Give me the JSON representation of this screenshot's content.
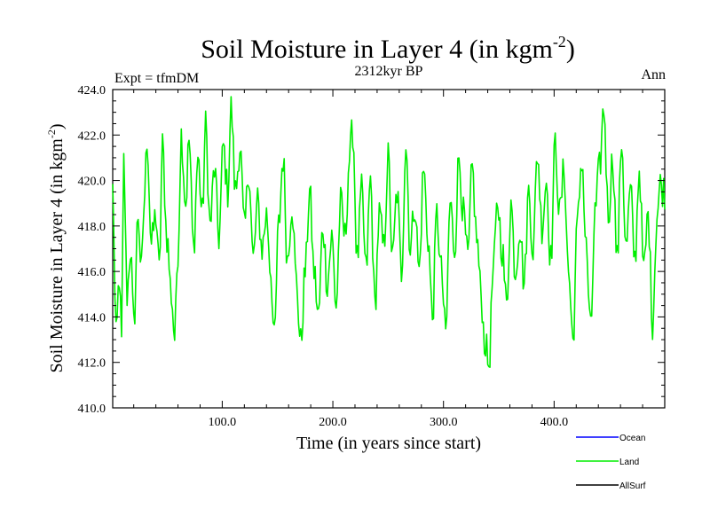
{
  "chart_data": {
    "type": "line",
    "title_main": "Soil Moisture in Layer 4 (in kgm",
    "title_sup": "-2",
    "title_close": ")",
    "subtitle": "2312kyr BP",
    "left_label": "Expt = tfmDM",
    "right_label": "Ann",
    "xlabel": "Time (in years since start)",
    "ylabel_main": "Soil Moisture in Layer 4 (in kgm",
    "ylabel_sup": "-2",
    "ylabel_close": ")",
    "xlim": [
      1,
      500
    ],
    "ylim": [
      410,
      424
    ],
    "x_ticks": [
      100,
      200,
      300,
      400
    ],
    "x_tick_labels": [
      "100.0",
      "200.0",
      "300.0",
      "400.0"
    ],
    "y_ticks": [
      410,
      412,
      414,
      416,
      418,
      420,
      422,
      424
    ],
    "y_tick_labels": [
      "410.0",
      "412.0",
      "414.0",
      "416.0",
      "418.0",
      "420.0",
      "422.0",
      "424.0"
    ],
    "legend": [
      {
        "name": "Ocean",
        "color": "#0000ff"
      },
      {
        "name": "Land",
        "color": "#00ee00"
      },
      {
        "name": "AllSurf",
        "color": "#000000"
      }
    ],
    "series": [
      {
        "name": "Land",
        "color": "#00ee00",
        "x_start": 1,
        "x_step": 1,
        "anchors": [
          [
            1,
            419.6
          ],
          [
            4,
            413.0
          ],
          [
            7,
            415.8
          ],
          [
            9,
            412.8
          ],
          [
            11,
            420.8
          ],
          [
            14,
            415.0
          ],
          [
            17,
            417.0
          ],
          [
            20,
            413.6
          ],
          [
            24,
            418.5
          ],
          [
            27,
            416.0
          ],
          [
            30,
            419.5
          ],
          [
            32,
            421.9
          ],
          [
            36,
            417.2
          ],
          [
            40,
            418.5
          ],
          [
            43,
            416.0
          ],
          [
            46,
            421.5
          ],
          [
            50,
            417.5
          ],
          [
            54,
            415.0
          ],
          [
            57,
            413.1
          ],
          [
            60,
            417.0
          ],
          [
            63,
            422.0
          ],
          [
            67,
            419.0
          ],
          [
            70,
            421.8
          ],
          [
            74,
            417.0
          ],
          [
            78,
            421.0
          ],
          [
            82,
            418.5
          ],
          [
            85,
            422.4
          ],
          [
            89,
            418.0
          ],
          [
            93,
            420.5
          ],
          [
            97,
            417.5
          ],
          [
            101,
            421.5
          ],
          [
            105,
            419.5
          ],
          [
            108,
            423.2
          ],
          [
            112,
            419.5
          ],
          [
            116,
            421.5
          ],
          [
            120,
            417.8
          ],
          [
            124,
            420.5
          ],
          [
            128,
            416.5
          ],
          [
            132,
            419.0
          ],
          [
            136,
            417.0
          ],
          [
            140,
            418.5
          ],
          [
            144,
            416.0
          ],
          [
            147,
            412.9
          ],
          [
            151,
            418.0
          ],
          [
            155,
            421.0
          ],
          [
            159,
            416.5
          ],
          [
            163,
            419.0
          ],
          [
            167,
            415.5
          ],
          [
            171,
            412.8
          ],
          [
            175,
            416.0
          ],
          [
            179,
            419.5
          ],
          [
            183,
            416.0
          ],
          [
            187,
            414.0
          ],
          [
            191,
            418.0
          ],
          [
            195,
            415.5
          ],
          [
            199,
            417.5
          ],
          [
            203,
            414.5
          ],
          [
            207,
            419.0
          ],
          [
            211,
            417.5
          ],
          [
            215,
            421.0
          ],
          [
            218,
            422.2
          ],
          [
            222,
            416.5
          ],
          [
            226,
            419.5
          ],
          [
            230,
            416.0
          ],
          [
            234,
            420.0
          ],
          [
            238,
            414.5
          ],
          [
            242,
            418.5
          ],
          [
            246,
            417.0
          ],
          [
            250,
            421.0
          ],
          [
            254,
            416.5
          ],
          [
            258,
            419.5
          ],
          [
            262,
            416.0
          ],
          [
            266,
            421.6
          ],
          [
            270,
            417.0
          ],
          [
            274,
            419.0
          ],
          [
            278,
            416.0
          ],
          [
            282,
            420.5
          ],
          [
            286,
            417.5
          ],
          [
            290,
            414.0
          ],
          [
            294,
            418.5
          ],
          [
            298,
            416.0
          ],
          [
            302,
            413.2
          ],
          [
            306,
            419.0
          ],
          [
            310,
            417.0
          ],
          [
            314,
            421.0
          ],
          [
            318,
            418.5
          ],
          [
            322,
            416.5
          ],
          [
            326,
            420.5
          ],
          [
            330,
            417.5
          ],
          [
            334,
            415.0
          ],
          [
            337,
            413.0
          ],
          [
            341,
            411.9
          ],
          [
            345,
            416.0
          ],
          [
            349,
            419.0
          ],
          [
            353,
            417.0
          ],
          [
            357,
            414.5
          ],
          [
            361,
            419.0
          ],
          [
            365,
            416.0
          ],
          [
            369,
            418.0
          ],
          [
            373,
            415.5
          ],
          [
            377,
            419.5
          ],
          [
            381,
            417.0
          ],
          [
            385,
            421.2
          ],
          [
            389,
            418.0
          ],
          [
            393,
            420.0
          ],
          [
            397,
            416.5
          ],
          [
            401,
            421.6
          ],
          [
            405,
            418.5
          ],
          [
            409,
            420.5
          ],
          [
            413,
            416.0
          ],
          [
            417,
            413.0
          ],
          [
            421,
            418.0
          ],
          [
            425,
            421.0
          ],
          [
            429,
            417.0
          ],
          [
            433,
            413.3
          ],
          [
            437,
            418.5
          ],
          [
            441,
            420.5
          ],
          [
            445,
            423.2
          ],
          [
            449,
            418.5
          ],
          [
            453,
            421.0
          ],
          [
            457,
            416.5
          ],
          [
            461,
            421.8
          ],
          [
            465,
            417.0
          ],
          [
            469,
            419.5
          ],
          [
            473,
            416.5
          ],
          [
            477,
            420.5
          ],
          [
            481,
            416.0
          ],
          [
            485,
            418.5
          ],
          [
            489,
            413.8
          ],
          [
            493,
            418.5
          ],
          [
            496,
            419.8
          ],
          [
            500,
            419.5
          ]
        ]
      }
    ]
  }
}
